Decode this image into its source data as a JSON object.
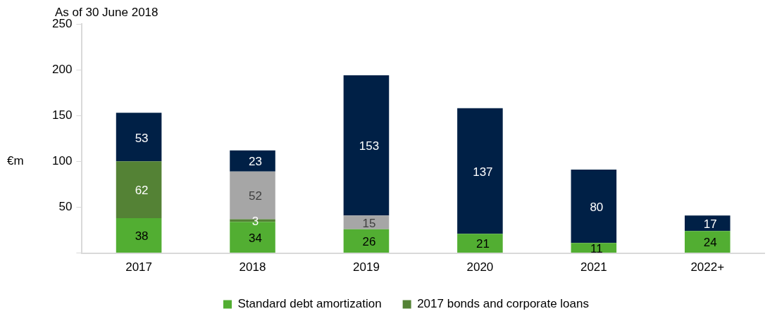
{
  "chart_data": {
    "type": "bar",
    "title": "As of 30 June 2018",
    "ylabel": "€m",
    "stacked": true,
    "data_labels": true,
    "legend": "bottom",
    "grid": false,
    "categories": [
      "2017",
      "2018",
      "2019",
      "2020",
      "2021",
      "2022+"
    ],
    "ylim": [
      0,
      250
    ],
    "yticks": [
      {
        "value": 0,
        "label": null
      },
      50,
      100,
      150,
      200,
      250
    ],
    "series": [
      {
        "name": "Standard debt amortization",
        "color": "#52ae32",
        "values": [
          38,
          34,
          26,
          21,
          11,
          24
        ]
      },
      {
        "name": "2017 bonds and corporate loans",
        "color": "#548235",
        "values": [
          62,
          3,
          null,
          null,
          null,
          null
        ]
      },
      {
        "color": "#a6a6a6",
        "values": [
          null,
          52,
          15,
          null,
          null,
          null
        ]
      },
      {
        "color": "#002046",
        "values": [
          53,
          23,
          153,
          137,
          80,
          17
        ]
      }
    ]
  }
}
